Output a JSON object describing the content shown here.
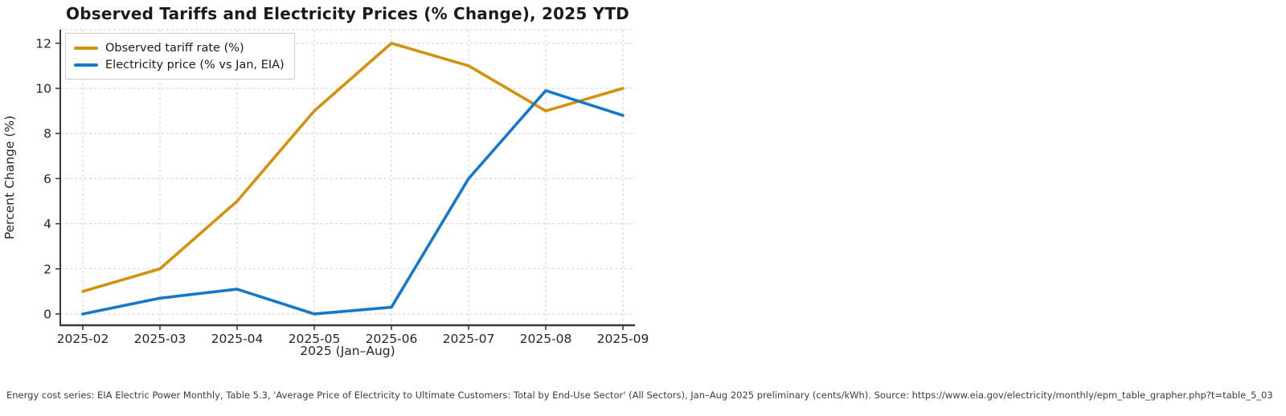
{
  "chart_data": {
    "type": "line",
    "title": "Observed Tariffs and Electricity Prices (% Change), 2025 YTD",
    "xlabel": "2025 (Jan–Aug)",
    "ylabel": "Percent Change (%)",
    "categories": [
      "2025-02",
      "2025-03",
      "2025-04",
      "2025-05",
      "2025-06",
      "2025-07",
      "2025-08",
      "2025-09"
    ],
    "yticks": [
      0,
      2,
      4,
      6,
      8,
      10,
      12
    ],
    "ylim": [
      -0.5,
      12.6
    ],
    "grid": true,
    "grid_style": "dashed",
    "legend_position": "upper-left",
    "series": [
      {
        "name": "Observed tariff rate (%)",
        "color": "#d2920f",
        "values": [
          1.0,
          2.0,
          5.0,
          9.0,
          12.0,
          11.0,
          9.0,
          10.0
        ]
      },
      {
        "name": "Electricity price (% vs Jan, EIA)",
        "color": "#1878c8",
        "values": [
          0.0,
          0.7,
          1.1,
          0.0,
          0.3,
          6.0,
          9.9,
          8.8
        ]
      }
    ]
  },
  "footnote": "Energy cost series: EIA Electric Power Monthly, Table 5.3, 'Average Price of Electricity to Ultimate Customers: Total by End-Use Sector' (All Sectors), Jan–Aug 2025 preliminary (cents/kWh). Source: https://www.eia.gov/electricity/monthly/epm_table_grapher.php?t=table_5_03"
}
